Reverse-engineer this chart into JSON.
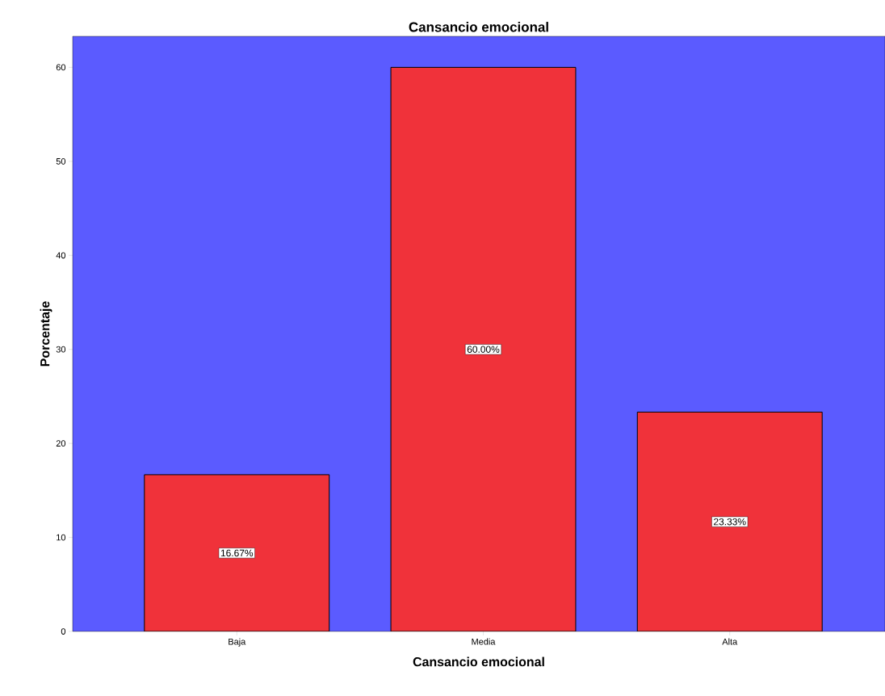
{
  "chart_data": {
    "type": "bar",
    "title": "Cansancio emocional",
    "xlabel": "Cansancio emocional",
    "ylabel": "Porcentaje",
    "categories": [
      "Baja",
      "Media",
      "Alta"
    ],
    "values": [
      16.67,
      60.0,
      23.33
    ],
    "value_labels": [
      "16.67%",
      "60.00%",
      "23.33%"
    ],
    "color": "#f0323a",
    "ylim": [
      0,
      63.3
    ],
    "yticks": [
      0,
      10,
      20,
      30,
      40,
      50,
      60
    ],
    "grid": false
  }
}
